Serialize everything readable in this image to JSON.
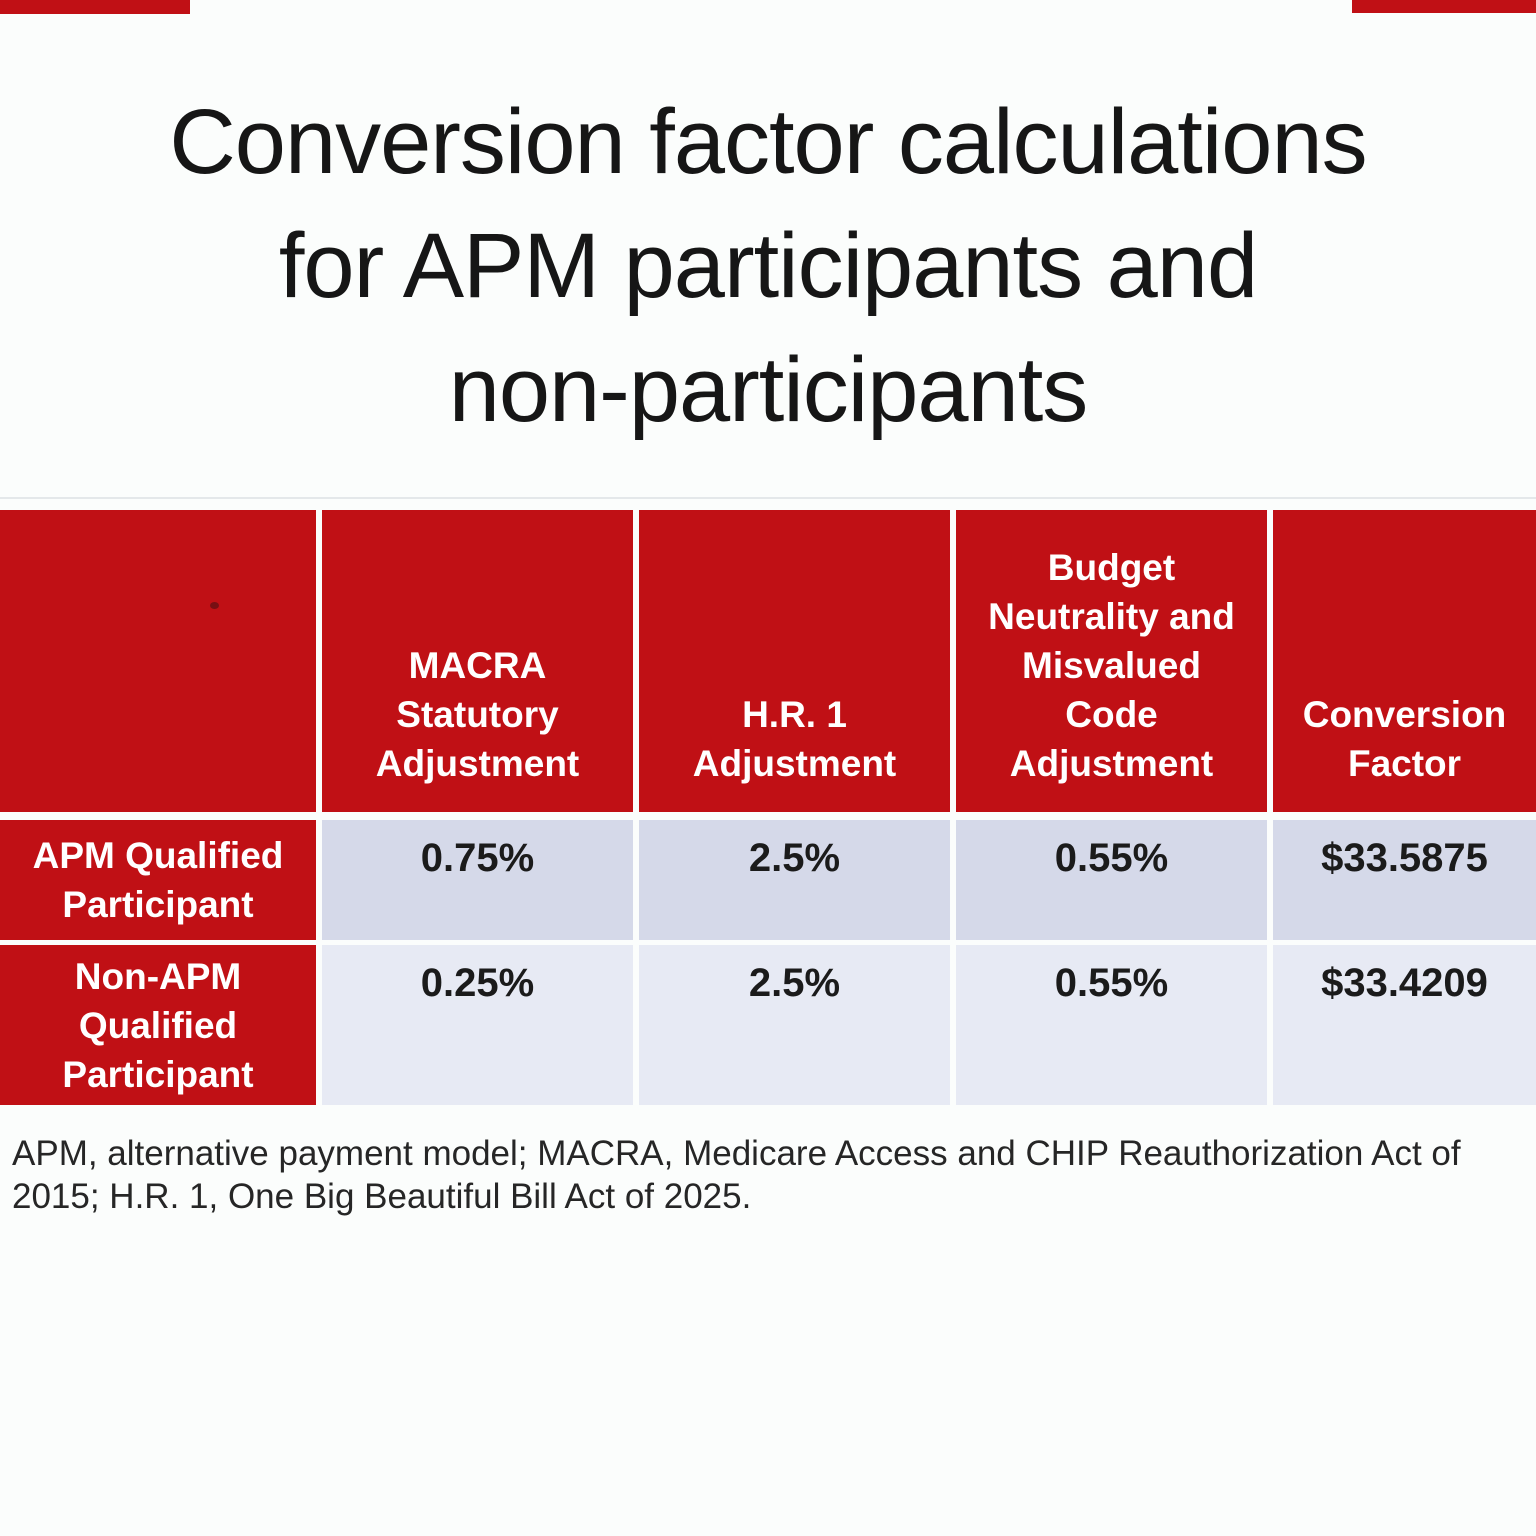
{
  "title": {
    "full_text": "Conversion factor calculations for APM participants and non-participants",
    "lines": [
      "Conversion factor calculations",
      "for APM participants and",
      "non-participants"
    ]
  },
  "table": {
    "column_headers": [
      "",
      "MACRA Statutory Adjustment",
      "H.R. 1 Adjustment",
      "Budget Neutrality and Misvalued Code Adjustment",
      "Conversion Factor"
    ],
    "rows": [
      {
        "label": "APM Qualified Participant",
        "values": [
          "0.75%",
          "2.5%",
          "0.55%",
          "$33.5875"
        ]
      },
      {
        "label": "Non-APM Qualified Participant",
        "values": [
          "0.25%",
          "2.5%",
          "0.55%",
          "$33.4209"
        ]
      }
    ]
  },
  "footnote": "APM, alternative payment model; MACRA, Medicare Access and CHIP Reauthorization Act of 2015; H.R. 1, One Big Beautiful Bill Act of 2025.",
  "colors": {
    "table_red": "#c01015",
    "row1_bg": "#d5d9e9",
    "row2_bg": "#e7eaf4",
    "grid_line": "#ffffff",
    "page_bg": "#fbfdfc",
    "header_text": "#ffffff",
    "value_text": "#1b1b1b",
    "title_text": "#161616",
    "footnote_text": "#262626"
  },
  "chart_data": {
    "type": "table",
    "title": "Conversion factor calculations for APM participants and non-participants",
    "columns": [
      "",
      "MACRA Statutory Adjustment",
      "H.R. 1 Adjustment",
      "Budget Neutrality and Misvalued Code Adjustment",
      "Conversion Factor"
    ],
    "rows": [
      [
        "APM Qualified Participant",
        "0.75%",
        "2.5%",
        "0.55%",
        "$33.5875"
      ],
      [
        "Non-APM Qualified Participant",
        "0.25%",
        "2.5%",
        "0.55%",
        "$33.4209"
      ]
    ]
  }
}
